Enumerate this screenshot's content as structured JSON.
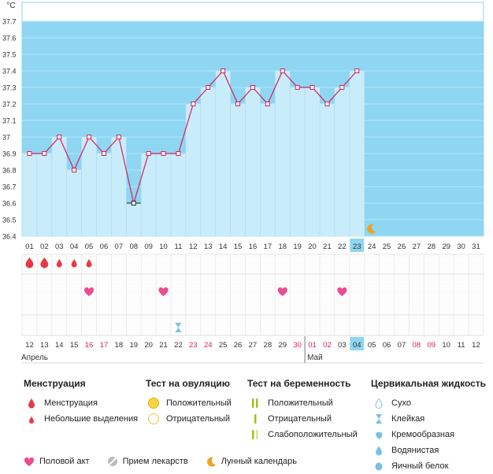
{
  "chart_data": {
    "type": "line",
    "unit_label": "°C",
    "y_ticks": [
      "36.4",
      "36.5",
      "36.6",
      "36.7",
      "36.8",
      "36.9",
      "37",
      "37.1",
      "37.2",
      "37.3",
      "37.4",
      "37.5",
      "37.6",
      "37.7"
    ],
    "ylim": [
      36.4,
      37.7
    ],
    "cycle_days": [
      "01",
      "02",
      "03",
      "04",
      "05",
      "06",
      "07",
      "08",
      "09",
      "10",
      "11",
      "12",
      "13",
      "14",
      "15",
      "16",
      "17",
      "18",
      "19",
      "20",
      "21",
      "22",
      "23",
      "24",
      "25",
      "26",
      "27",
      "28",
      "29",
      "30",
      "31"
    ],
    "temperatures": [
      36.9,
      36.9,
      37.0,
      36.8,
      37.0,
      36.9,
      37.0,
      36.6,
      36.9,
      36.9,
      36.9,
      37.2,
      37.3,
      37.4,
      37.2,
      37.3,
      37.2,
      37.4,
      37.3,
      37.3,
      37.2,
      37.3,
      37.4
    ],
    "highlight_point_index": 7,
    "current_day_index": 22,
    "dates": [
      "12",
      "13",
      "14",
      "15",
      "16",
      "17",
      "18",
      "19",
      "20",
      "21",
      "22",
      "23",
      "24",
      "25",
      "26",
      "27",
      "28",
      "29",
      "30",
      "01",
      "02",
      "03",
      "04",
      "05",
      "06",
      "07",
      "08",
      "09",
      "10",
      "11",
      "12"
    ],
    "red_date_indices": [
      4,
      5,
      11,
      12,
      18,
      19,
      20,
      26,
      27
    ],
    "month_labels": [
      {
        "label": "Апрель",
        "index": 0
      },
      {
        "label": "Май",
        "index": 19
      }
    ],
    "menstruation": [
      {
        "index": 0,
        "size": "large"
      },
      {
        "index": 1,
        "size": "large"
      },
      {
        "index": 2,
        "size": "small"
      },
      {
        "index": 3,
        "size": "small"
      },
      {
        "index": 4,
        "size": "small"
      }
    ],
    "intercourse_indices": [
      4,
      9,
      17,
      21
    ],
    "cervical_sticky_indices": [
      10
    ],
    "moon_index": 23,
    "colors": {
      "accent": "#8ed6f2",
      "fill": "#c9ecfa",
      "line": "#d81e5b",
      "heart": "#ee4a8f",
      "drop": "#e63946",
      "moon": "#f0a323"
    }
  },
  "legend": {
    "menstruation": {
      "title": "Менструация",
      "items": [
        "Менструация",
        "Небольшие выделения"
      ]
    },
    "ovulation": {
      "title": "Тест на овуляцию",
      "items": [
        "Положительный",
        "Отрицательный"
      ]
    },
    "pregnancy": {
      "title": "Тест на беременность",
      "items": [
        "Положительный",
        "Отрицательный",
        "Слабоположительный"
      ]
    },
    "cervical": {
      "title": "Цервикальная жидкость",
      "items": [
        "Сухо",
        "Клейкая",
        "Кремообразная",
        "Водянистая",
        "Яичный белок"
      ]
    },
    "bottom": [
      "Половой акт",
      "Прием лекарств",
      "Лунный календарь"
    ]
  }
}
